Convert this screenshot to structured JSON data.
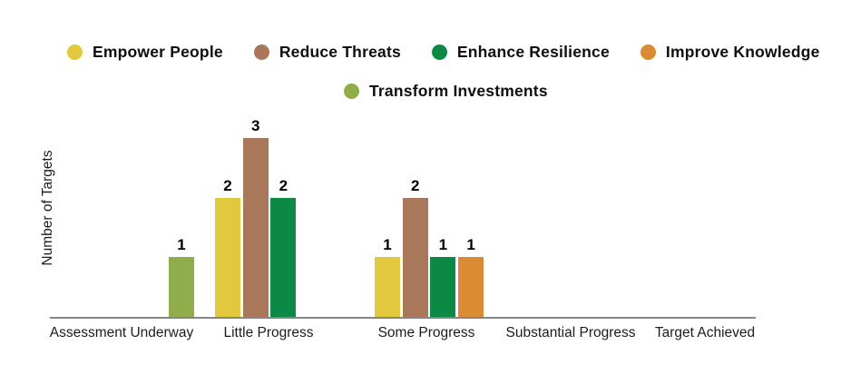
{
  "chart_data": {
    "type": "bar",
    "title": "",
    "xlabel": "",
    "ylabel": "Number of Targets",
    "categories": [
      "Assessment Underway",
      "Little Progress",
      "Some Progress",
      "Substantial Progress",
      "Target Achieved"
    ],
    "series": [
      {
        "name": "Empower People",
        "color": "#e2c83c",
        "values": [
          null,
          2,
          1,
          null,
          null
        ]
      },
      {
        "name": "Reduce Threats",
        "color": "#a9775a",
        "values": [
          null,
          3,
          2,
          null,
          null
        ]
      },
      {
        "name": "Enhance Resilience",
        "color": "#0c8a45",
        "values": [
          null,
          2,
          1,
          null,
          null
        ]
      },
      {
        "name": "Improve Knowledge",
        "color": "#db8b33",
        "values": [
          null,
          null,
          1,
          null,
          null
        ]
      },
      {
        "name": "Transform Investments",
        "color": "#8fad4a",
        "values": [
          1,
          null,
          null,
          null,
          null
        ]
      }
    ],
    "ylim": [
      0,
      3.3
    ],
    "grid": false,
    "legend_position": "top",
    "bar_value_labels": true,
    "axis_line_color": "#858585"
  }
}
